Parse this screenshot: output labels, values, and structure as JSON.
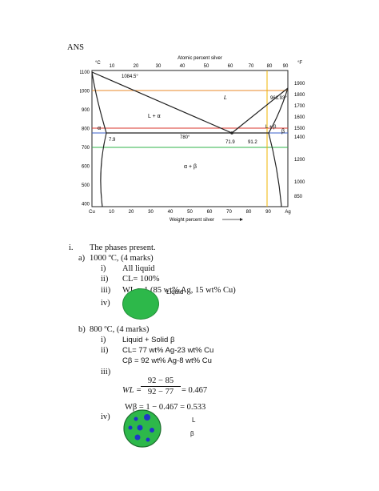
{
  "header": "ANS",
  "diagram": {
    "top_axis_label": "Atomic percent silver",
    "bottom_axis_label": "Weight percent silver",
    "left_unit": "°C",
    "right_unit": "°F",
    "top_ticks": [
      "10",
      "20",
      "30",
      "40",
      "50",
      "60",
      "70",
      "80",
      "90"
    ],
    "bottom_ticks": [
      "Cu",
      "10",
      "20",
      "30",
      "40",
      "50",
      "60",
      "70",
      "80",
      "90",
      "Ag"
    ],
    "left_ticks": [
      "1100",
      "1000",
      "900",
      "800",
      "700",
      "600",
      "500",
      "400"
    ],
    "right_ticks": [
      "1900",
      "1800",
      "1700",
      "1600",
      "1500",
      "1400",
      "1200",
      "1000",
      "850"
    ],
    "labels": {
      "cu_melt": "1084.5°",
      "ag_melt": "961.93°",
      "liquid": "L",
      "l_alpha": "L + α",
      "l_beta": "L + β",
      "alpha": "α",
      "beta": "β",
      "eutectic_temp": "780°",
      "alpha_sol": "7.9",
      "eutectic_comp": "71.9",
      "beta_sol": "91.2",
      "alpha_beta": "α + β"
    }
  },
  "questions": {
    "main_num": "i.",
    "main_text": "The phases present.",
    "a": {
      "num": "a)",
      "text": "1000 ºC, (4 marks)",
      "i_num": "i)",
      "i_text": "All liquid",
      "ii_num": "ii)",
      "ii_text": "CL= 100%",
      "iii_num": "iii)",
      "iii_text": "WL = 1 (85 wt% Ag, 15 wt% Cu)",
      "iv_num": "iv)",
      "circle_label": "Liquid"
    },
    "b": {
      "num": "b)",
      "text": "800 ºC, (4 marks)",
      "i_num": "i)",
      "i_text": "Liquid + Solid β",
      "ii_num": "ii)",
      "ii_text1": "CL= 77 wt% Ag-23 wt% Cu",
      "ii_text2": "Cβ = 92 wt% Ag-8 wt% Cu",
      "iii_num": "iii)",
      "wl_lhs": "WL =",
      "wl_num": "92 − 85",
      "wl_den": "92 − 77",
      "wl_rhs": "= 0.467",
      "wb_text": "Wβ = 1 − 0.467 = 0.533",
      "iv_num": "iv)",
      "legend_l": "L",
      "legend_b": "β"
    }
  },
  "colors": {
    "orange_line": "#e8892a",
    "red_line": "#d9342b",
    "blue_line": "#3a5fc8",
    "green_line": "#2fb34a",
    "yellow_line": "#f0b400",
    "liquid_green": "#2db84a",
    "beta_blue": "#1f35c9"
  }
}
